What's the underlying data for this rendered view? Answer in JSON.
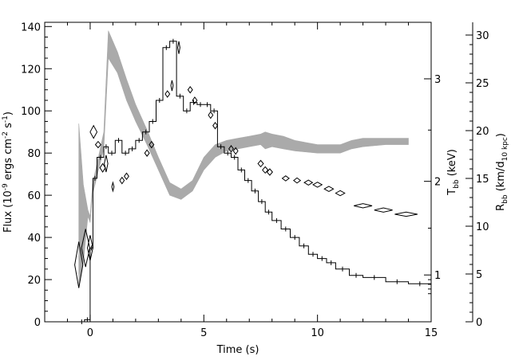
{
  "chart_data": {
    "type": "line",
    "xlabel": "Time (s)",
    "ylabel_left": {
      "main": "Flux (10",
      "sup1": "-9",
      "mid": " ergs cm",
      "sup2": "-2",
      "mid2": " s",
      "sup3": "-1",
      "end": ")"
    },
    "ylabel_right_inner": {
      "main": "T",
      "sub": "bb",
      "end": " (keV)"
    },
    "ylabel_right_outer": {
      "main": "R",
      "sub": "bb",
      "mid": " (km/d",
      "sub2": "10 kpc",
      "end": ")"
    },
    "xlim": [
      -2,
      15
    ],
    "ylim": [
      0,
      142
    ],
    "xticks": [
      "0",
      "5",
      "10",
      "15"
    ],
    "yticks_left": [
      "0",
      "20",
      "40",
      "60",
      "80",
      "100",
      "120",
      "140"
    ],
    "yticks_right_inner": [
      "1",
      "2",
      "3"
    ],
    "yticks_right_outer": [
      "0",
      "5",
      "10",
      "15",
      "20",
      "25",
      "30"
    ],
    "grid": false,
    "series": [
      {
        "kind": "step",
        "color": "#000000",
        "x": [
          -0.5,
          -0.25,
          0,
          0.12,
          0.3,
          0.6,
          0.8,
          1.1,
          1.4,
          1.7,
          2.0,
          2.3,
          2.6,
          2.9,
          3.2,
          3.5,
          3.8,
          4.1,
          4.4,
          4.7,
          5.0,
          5.3,
          5.6,
          5.9,
          6.2,
          6.5,
          6.8,
          7.1,
          7.4,
          7.7,
          8.0,
          8.4,
          8.8,
          9.2,
          9.6,
          10.0,
          10.4,
          10.8,
          11.4,
          12.0,
          13.0,
          14.0,
          15.0
        ],
        "y": [
          0,
          1,
          35,
          68,
          78,
          83,
          80,
          86,
          80,
          82,
          86,
          90,
          95,
          105,
          130,
          133,
          107,
          100,
          104,
          103,
          103,
          100,
          83,
          80,
          78,
          72,
          67,
          62,
          57,
          52,
          48,
          44,
          40,
          36,
          32,
          30,
          28,
          25,
          22,
          21,
          19,
          18,
          18
        ]
      },
      {
        "kind": "band",
        "color": "#aaaaaa",
        "x": [
          -0.5,
          -0.3,
          -0.1,
          0.0,
          0.1,
          0.3,
          0.6,
          0.8,
          1.2,
          1.6,
          2.0,
          2.5,
          3.0,
          3.5,
          4.0,
          4.5,
          5.0,
          5.5,
          6.0,
          6.5,
          7.0,
          7.5,
          7.7,
          8.0,
          8.5,
          9.0,
          10.0,
          11.0,
          11.5,
          12.0,
          13.0,
          14.0
        ],
        "lower": [
          17,
          28,
          50,
          47,
          60,
          69,
          82,
          125,
          118,
          105,
          95,
          84,
          72,
          60,
          58,
          62,
          72,
          78,
          81,
          82,
          83,
          84,
          82,
          83,
          82,
          81,
          80,
          80,
          82,
          83,
          84,
          84
        ],
        "upper": [
          94,
          65,
          53,
          50,
          65,
          75,
          90,
          138,
          128,
          115,
          103,
          91,
          78,
          66,
          63,
          67,
          78,
          84,
          86,
          87,
          88,
          89,
          90,
          89,
          88,
          86,
          84,
          84,
          86,
          87,
          87,
          87
        ]
      },
      {
        "kind": "diamonds",
        "color": "#000000",
        "points": [
          {
            "x": -0.5,
            "y": 27,
            "dx": 0.18,
            "dy": 11
          },
          {
            "x": -0.2,
            "y": 35,
            "dx": 0.18,
            "dy": 9
          },
          {
            "x": 0.0,
            "y": 35,
            "dx": 0.12,
            "dy": 6
          },
          {
            "x": 0.15,
            "y": 90,
            "dx": 0.15,
            "dy": 3
          },
          {
            "x": 0.35,
            "y": 84,
            "dx": 0.12,
            "dy": 1.5
          },
          {
            "x": 0.55,
            "y": 73,
            "dx": 0.12,
            "dy": 2
          },
          {
            "x": 0.7,
            "y": 75,
            "dx": 0.08,
            "dy": 4
          },
          {
            "x": 1.0,
            "y": 64,
            "dx": 0.05,
            "dy": 2
          },
          {
            "x": 1.4,
            "y": 67,
            "dx": 0.1,
            "dy": 1.5
          },
          {
            "x": 1.6,
            "y": 69,
            "dx": 0.1,
            "dy": 1.5
          },
          {
            "x": 2.5,
            "y": 80,
            "dx": 0.1,
            "dy": 1.5
          },
          {
            "x": 2.7,
            "y": 84,
            "dx": 0.1,
            "dy": 1.5
          },
          {
            "x": 3.4,
            "y": 108,
            "dx": 0.1,
            "dy": 1.5
          },
          {
            "x": 3.6,
            "y": 112,
            "dx": 0.05,
            "dy": 2.5
          },
          {
            "x": 3.9,
            "y": 130,
            "dx": 0.05,
            "dy": 3
          },
          {
            "x": 4.4,
            "y": 110,
            "dx": 0.1,
            "dy": 1.5
          },
          {
            "x": 4.6,
            "y": 105,
            "dx": 0.1,
            "dy": 1.5
          },
          {
            "x": 5.3,
            "y": 98,
            "dx": 0.1,
            "dy": 1.5
          },
          {
            "x": 5.5,
            "y": 93,
            "dx": 0.1,
            "dy": 1.5
          },
          {
            "x": 6.2,
            "y": 82,
            "dx": 0.1,
            "dy": 1.5
          },
          {
            "x": 6.4,
            "y": 81,
            "dx": 0.1,
            "dy": 1.5
          },
          {
            "x": 7.5,
            "y": 75,
            "dx": 0.12,
            "dy": 1.5
          },
          {
            "x": 7.7,
            "y": 72,
            "dx": 0.12,
            "dy": 1.5
          },
          {
            "x": 7.9,
            "y": 71,
            "dx": 0.12,
            "dy": 1.5
          },
          {
            "x": 8.6,
            "y": 68,
            "dx": 0.15,
            "dy": 1.2
          },
          {
            "x": 9.1,
            "y": 67,
            "dx": 0.15,
            "dy": 1.2
          },
          {
            "x": 9.6,
            "y": 66,
            "dx": 0.18,
            "dy": 1.2
          },
          {
            "x": 10.0,
            "y": 65,
            "dx": 0.2,
            "dy": 1.2
          },
          {
            "x": 10.5,
            "y": 63,
            "dx": 0.2,
            "dy": 1.2
          },
          {
            "x": 11.0,
            "y": 61,
            "dx": 0.2,
            "dy": 1.2
          },
          {
            "x": 12.0,
            "y": 55,
            "dx": 0.4,
            "dy": 1
          },
          {
            "x": 12.9,
            "y": 53,
            "dx": 0.4,
            "dy": 1
          },
          {
            "x": 13.9,
            "y": 51,
            "dx": 0.5,
            "dy": 1
          }
        ]
      }
    ]
  }
}
